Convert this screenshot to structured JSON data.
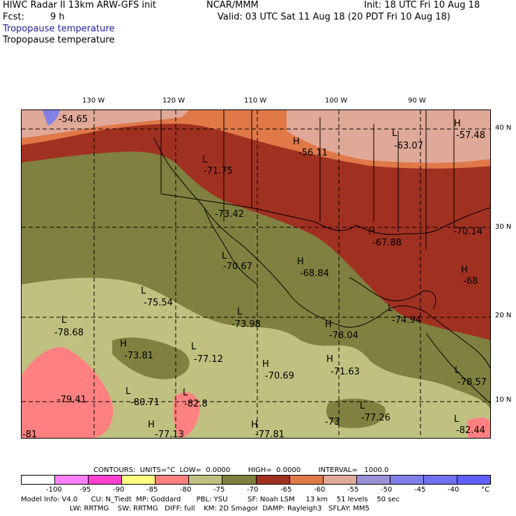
{
  "header": {
    "title_left": "HIWC Radar II 13km ARW-GFS init",
    "center_label": "NCAR/MMM",
    "init": "Init: 18 UTC Fri 10 Aug 18",
    "fcst_label": "Fcst:",
    "fcst_value": "9 h",
    "valid": "Valid: 03 UTC Sat 11 Aug 18 (20 PDT Fri 10 Aug 18)",
    "field1": "Tropopause temperature",
    "field2": "Tropopause temperature"
  },
  "axes": {
    "lon": [
      "130 W",
      "120 W",
      "110 W",
      "100 W",
      "90 W"
    ],
    "lat": [
      "40 N",
      "30 N",
      "20 N",
      "10 N"
    ]
  },
  "labels": [
    {
      "hl": "",
      "v": "-54.65"
    },
    {
      "hl": "H",
      "v": "-56.11"
    },
    {
      "hl": "L",
      "v": "-63.07"
    },
    {
      "hl": "H",
      "v": "-57.48"
    },
    {
      "hl": "L",
      "v": "-71.75"
    },
    {
      "hl": "",
      "v": "-73.42"
    },
    {
      "hl": "H",
      "v": "-67.88"
    },
    {
      "hl": "",
      "v": "-70.14"
    },
    {
      "hl": "L",
      "v": "-70.67"
    },
    {
      "hl": "H",
      "v": "-68.84"
    },
    {
      "hl": "H",
      "v": "-68"
    },
    {
      "hl": "L",
      "v": "-75.54"
    },
    {
      "hl": "L",
      "v": "-73.98"
    },
    {
      "hl": "L",
      "v": "-74.94"
    },
    {
      "hl": "L",
      "v": "-78.68"
    },
    {
      "hl": "H",
      "v": "-78.04"
    },
    {
      "hl": "H",
      "v": "-73.81"
    },
    {
      "hl": "L",
      "v": "-77.12"
    },
    {
      "hl": "H",
      "v": "-70.69"
    },
    {
      "hl": "H",
      "v": "-71.63"
    },
    {
      "hl": "L",
      "v": "-78.57"
    },
    {
      "hl": "",
      "v": "-79.41"
    },
    {
      "hl": "L",
      "v": "-80.71"
    },
    {
      "hl": "L",
      "v": "-82.8"
    },
    {
      "hl": "",
      "v": "-73"
    },
    {
      "hl": "L",
      "v": "-77.26"
    },
    {
      "hl": "L",
      "v": "-82.44"
    },
    {
      "hl": "H",
      "v": "-77.13"
    },
    {
      "hl": "H",
      "v": "-77.81"
    },
    {
      "hl": "",
      "v": "-81"
    }
  ],
  "contours_line": "CONTOURS:  UNITS=°C  LOW=  0.0000        HIGH=  0.0000        INTERVAL=   1000.0",
  "colorbar": {
    "colors": [
      "#ffffff",
      "#ff80ff",
      "#ff40d0",
      "#ffff80",
      "#ff8080",
      "#c0c080",
      "#808040",
      "#a03020",
      "#e07848",
      "#e0a898",
      "#9890d8",
      "#8080e8",
      "#7070f0",
      "#6060ff"
    ],
    "ticks": [
      "-100",
      "-95",
      "-90",
      "-85",
      "-80",
      "-75",
      "-70",
      "-65",
      "-60",
      "-55",
      "-50",
      "-45",
      "-40",
      "°C"
    ]
  },
  "footer": {
    "line1": "Model Info: V4.0      CU: N_Tiedt  MP: Goddard       PBL: YSU         SF: Noah LSM     13 km    51 levels    50 sec",
    "line2": "                      LW: RRTMG    SW: RRTMG   DIFF: full    KM: 2D Smagor  DAMP: Rayleigh3   SFLAY: MM5"
  }
}
